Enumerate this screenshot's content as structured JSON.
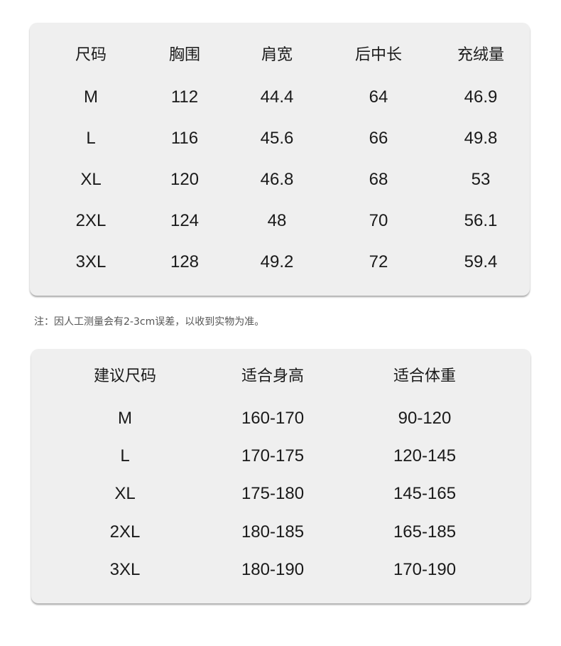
{
  "size_table": {
    "headers": [
      "尺码",
      "胸围",
      "肩宽",
      "后中长",
      "充绒量"
    ],
    "rows": [
      [
        "M",
        "112",
        "44.4",
        "64",
        "46.9"
      ],
      [
        "L",
        "116",
        "45.6",
        "66",
        "49.8"
      ],
      [
        "XL",
        "120",
        "46.8",
        "68",
        "53"
      ],
      [
        "2XL",
        "124",
        "48",
        "70",
        "56.1"
      ],
      [
        "3XL",
        "128",
        "49.2",
        "72",
        "59.4"
      ]
    ]
  },
  "note": "注：因人工测量会有2-3cm误差，以收到实物为准。",
  "recommend_table": {
    "headers": [
      "建议尺码",
      "适合身高",
      "适合体重"
    ],
    "rows": [
      [
        "M",
        "160-170",
        "90-120"
      ],
      [
        "L",
        "170-175",
        "120-145"
      ],
      [
        "XL",
        "175-180",
        "145-165"
      ],
      [
        "2XL",
        "180-185",
        "165-185"
      ],
      [
        "3XL",
        "180-190",
        "170-190"
      ]
    ]
  }
}
